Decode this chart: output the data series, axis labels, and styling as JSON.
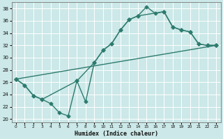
{
  "xlabel": "Humidex (Indice chaleur)",
  "bg_color": "#cce8e8",
  "grid_color": "#bbdddd",
  "line_color": "#2e7b6e",
  "marker": "D",
  "markersize": 2.5,
  "linewidth": 1.0,
  "xlim": [
    -0.5,
    23.5
  ],
  "ylim": [
    19.5,
    39
  ],
  "yticks": [
    20,
    22,
    24,
    26,
    28,
    30,
    32,
    34,
    36,
    38
  ],
  "xticks": [
    0,
    1,
    2,
    3,
    4,
    5,
    6,
    7,
    8,
    9,
    10,
    11,
    12,
    13,
    14,
    15,
    16,
    17,
    18,
    19,
    20,
    21,
    22,
    23
  ],
  "line1_x": [
    0,
    1,
    2,
    3,
    4,
    5,
    6,
    7,
    8,
    9,
    10,
    11,
    12,
    13,
    14,
    15,
    16,
    17,
    18,
    19,
    20,
    21,
    22,
    23
  ],
  "line1_y": [
    26.5,
    25.5,
    23.8,
    23.2,
    22.5,
    21.0,
    20.5,
    26.2,
    22.8,
    29.2,
    31.2,
    32.3,
    34.5,
    36.2,
    36.8,
    38.3,
    37.2,
    37.5,
    35.0,
    34.5,
    34.2,
    32.2,
    32.0,
    32.0
  ],
  "line2_x": [
    0,
    1,
    2,
    3,
    7,
    9,
    10,
    11,
    12,
    13,
    14,
    17,
    18,
    19,
    20,
    21,
    22,
    23
  ],
  "line2_y": [
    26.5,
    25.5,
    23.8,
    23.2,
    26.2,
    29.2,
    31.2,
    32.3,
    34.5,
    36.2,
    36.8,
    37.5,
    35.0,
    34.5,
    34.2,
    32.2,
    32.0,
    32.0
  ],
  "line3_x": [
    0,
    23
  ],
  "line3_y": [
    26.5,
    32.0
  ]
}
